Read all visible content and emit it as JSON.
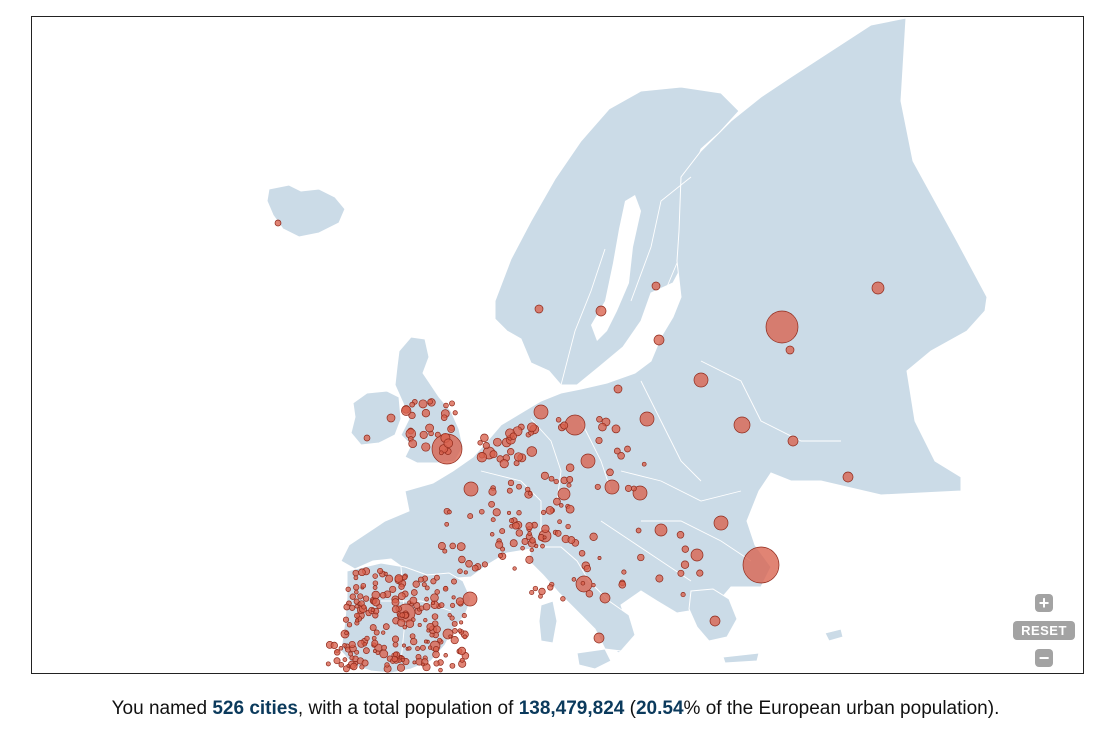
{
  "map": {
    "controls": {
      "zoom_in": "+",
      "reset": "RESET",
      "zoom_out": "−"
    },
    "colors": {
      "land": "#cbdbe7",
      "city_fill": "#d9624d",
      "city_stroke": "#8f2a1c",
      "borders": "#ffffff"
    }
  },
  "summary": {
    "prefix": "You named ",
    "cities": "526 cities",
    "middle": ", with a total population of ",
    "population": "138,479,824",
    "open": " (",
    "percent": "20.54",
    "suffix": "% of the European urban population)."
  }
}
